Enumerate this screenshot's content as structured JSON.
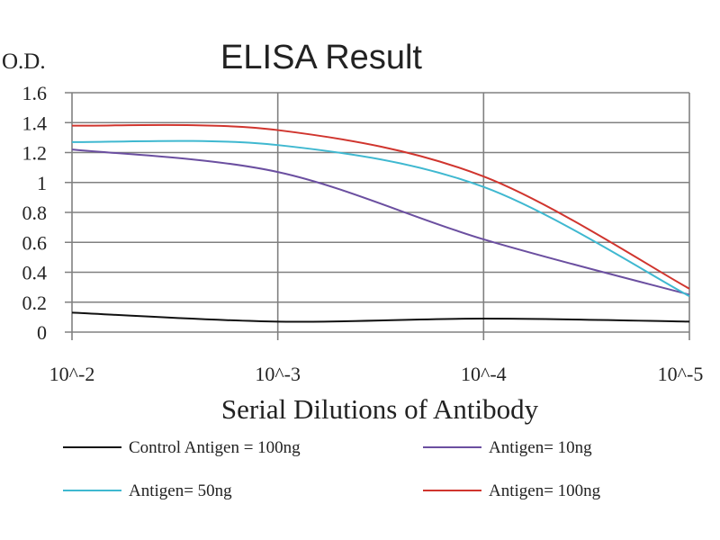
{
  "chart_data": {
    "type": "line",
    "title": "ELISA Result",
    "ylabel": "O.D.",
    "xlabel": "Serial Dilutions of Antibody",
    "x_categories": [
      "10^-2",
      "10^-3",
      "10^-4",
      "10^-5"
    ],
    "ylim": [
      0,
      1.6
    ],
    "y_ticks": [
      "0",
      "0.2",
      "0.4",
      "0.6",
      "0.8",
      "1",
      "1.2",
      "1.4",
      "1.6"
    ],
    "grid": true,
    "legend_position": "bottom",
    "series": [
      {
        "name": "Control Antigen = 100ng",
        "color": "#111111",
        "values": [
          0.13,
          0.07,
          0.09,
          0.07
        ]
      },
      {
        "name": "Antigen= 10ng",
        "color": "#6b4fa0",
        "values": [
          1.22,
          1.07,
          0.62,
          0.25
        ]
      },
      {
        "name": "Antigen= 50ng",
        "color": "#3fb8d0",
        "values": [
          1.27,
          1.25,
          0.97,
          0.24
        ]
      },
      {
        "name": "Antigen= 100ng",
        "color": "#d0352e",
        "values": [
          1.38,
          1.35,
          1.04,
          0.29
        ]
      }
    ]
  }
}
